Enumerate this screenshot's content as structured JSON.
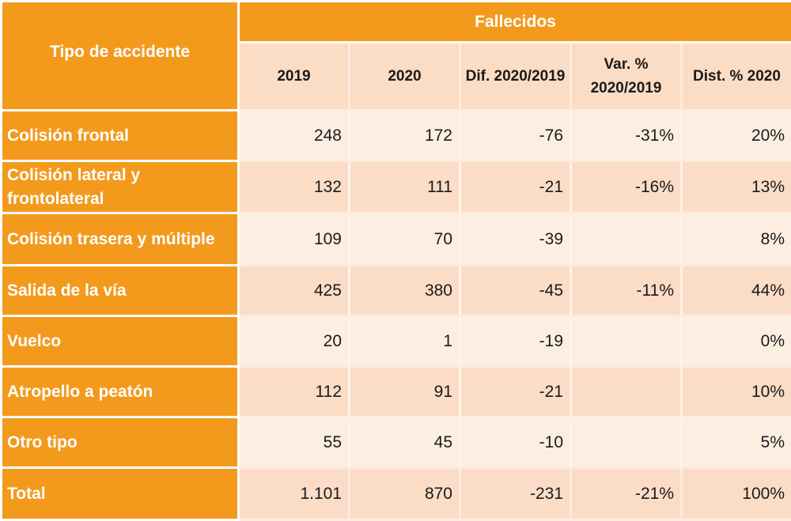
{
  "chart_data": {
    "type": "table",
    "title": "",
    "group_header": "Fallecidos",
    "row_header": "Tipo de accidente",
    "columns": [
      "2019",
      "2020",
      "Dif. 2020/2019",
      "Var. % 2020/2019",
      "Dist. % 2020"
    ],
    "rows": [
      {
        "label": "Colisión frontal",
        "values": [
          "248",
          "172",
          "-76",
          "-31%",
          "20%"
        ]
      },
      {
        "label": "Colisión lateral y frontolateral",
        "values": [
          "132",
          "111",
          "-21",
          "-16%",
          "13%"
        ]
      },
      {
        "label": "Colisión trasera y múltiple",
        "values": [
          "109",
          "70",
          "-39",
          "",
          "8%"
        ]
      },
      {
        "label": "Salida de la vía",
        "values": [
          "425",
          "380",
          "-45",
          "-11%",
          "44%"
        ]
      },
      {
        "label": "Vuelco",
        "values": [
          "20",
          "1",
          "-19",
          "",
          "0%"
        ]
      },
      {
        "label": "Atropello a peatón",
        "values": [
          "112",
          "91",
          "-21",
          "",
          "10%"
        ]
      },
      {
        "label": "Otro tipo",
        "values": [
          "55",
          "45",
          "-10",
          "",
          "5%"
        ]
      },
      {
        "label": "Total",
        "values": [
          "1.101",
          "870",
          "-231",
          "-21%",
          "100%"
        ]
      }
    ]
  },
  "colors": {
    "header_orange": "#f39a1d",
    "subheader_peach": "#fbdcc4",
    "row_light": "#fdeee2",
    "row_dark": "#fbdcc6"
  }
}
